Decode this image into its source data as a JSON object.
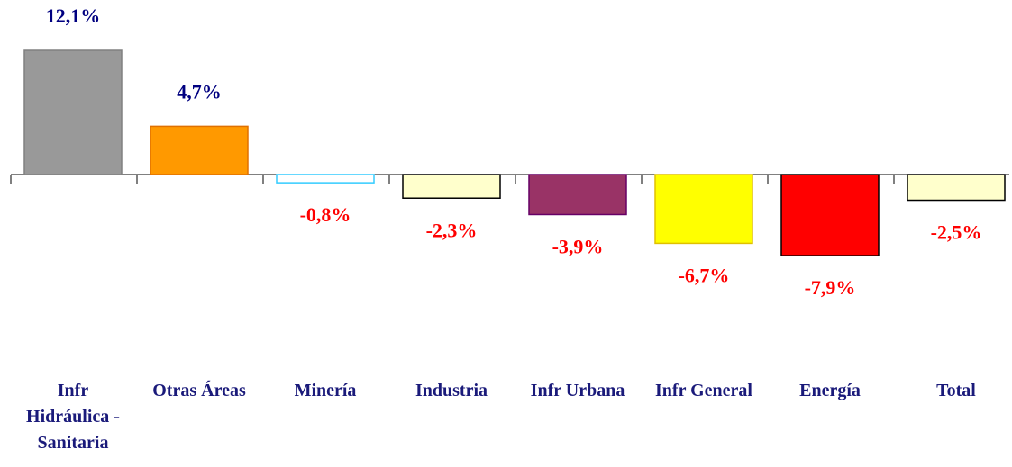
{
  "chart_data": {
    "type": "bar",
    "categories": [
      "Infr Hidráulica - Sanitaria",
      "Otras Áreas",
      "Minería",
      "Industria",
      "Infr Urbana",
      "Infr General",
      "Energía",
      "Total"
    ],
    "values": [
      12.1,
      4.7,
      -0.8,
      -2.3,
      -3.9,
      -6.7,
      -7.9,
      -2.5
    ],
    "value_labels": [
      "12,1%",
      "4,7%",
      "-0,8%",
      "-2,3%",
      "-3,9%",
      "-6,7%",
      "-7,9%",
      "-2,5%"
    ],
    "colors": [
      "#999999",
      "#ff9900",
      "#ffffff",
      "#ffffcc",
      "#993366",
      "#ffff00",
      "#ff0000",
      "#ffffcc"
    ],
    "border_colors": [
      "#808080",
      "#e07000",
      "#33ccff",
      "#000000",
      "#660066",
      "#e0c000",
      "#000000",
      "#000000"
    ]
  }
}
